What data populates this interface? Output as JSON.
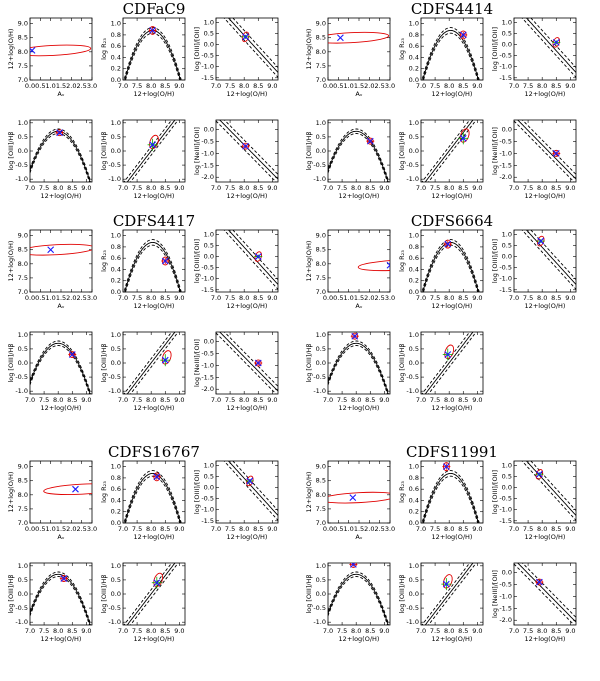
{
  "chart_data": {
    "type": "scatter",
    "axis_text": {
      "oh": "12+log(O/H)",
      "av": "Aᵥ",
      "r23": "log R₂₃",
      "o3o2": "log [OIII]/[OII]",
      "o3hb": "log [OIII]/Hβ",
      "ne3o2": "log [NeIII]/[OII]"
    },
    "axes_ranges": {
      "oh_x": [
        7.0,
        9.2
      ],
      "av_x": [
        0.0,
        3.0
      ],
      "oh_y_av": [
        7.0,
        9.2
      ],
      "r23_y": [
        0.0,
        1.1
      ],
      "o3o2_y": [
        -1.6,
        1.2
      ],
      "o3hb_y": [
        -1.1,
        1.1
      ],
      "ne3o2_y": [
        -2.2,
        0.4
      ]
    },
    "objects": [
      {
        "name": "CDFaC9",
        "av": 0.1,
        "oh": 8.05,
        "r23": 0.88,
        "o3o2": 0.35,
        "o3hb": 0.65,
        "o3hb_b": 0.22,
        "ne3o2": -0.7,
        "has_ne3o2": true
      },
      {
        "name": "CDFS4414",
        "av": 0.6,
        "oh": 8.5,
        "r23": 0.8,
        "o3o2": 0.1,
        "o3hb": 0.35,
        "o3hb_b": 0.45,
        "ne3o2": -1.0,
        "has_ne3o2": true
      },
      {
        "name": "CDFS4417",
        "av": 1.0,
        "oh": 8.5,
        "r23": 0.55,
        "o3o2": 0.0,
        "o3hb": 0.3,
        "o3hb_b": 0.1,
        "ne3o2": -0.9,
        "has_ne3o2": true
      },
      {
        "name": "CDFS6664",
        "av": 3.0,
        "oh": 7.95,
        "r23": 0.85,
        "o3o2": 0.7,
        "o3hb": 0.95,
        "o3hb_b": 0.3,
        "ne3o2": null,
        "has_ne3o2": false
      },
      {
        "name": "CDFS16767",
        "av": 2.2,
        "oh": 8.2,
        "r23": 0.82,
        "o3o2": 0.3,
        "o3hb": 0.55,
        "o3hb_b": 0.4,
        "ne3o2": null,
        "has_ne3o2": false
      },
      {
        "name": "CDFS11991",
        "av": 1.2,
        "oh": 7.9,
        "r23": 1.0,
        "o3o2": 0.6,
        "o3hb": 1.05,
        "o3hb_b": 0.35,
        "ne3o2": -0.4,
        "has_ne3o2": true
      }
    ],
    "colors": {
      "marker": "#1a1aff",
      "ellipse": "#e00000",
      "errorbar_alt": "#00aa00",
      "curve": "#000000"
    }
  }
}
